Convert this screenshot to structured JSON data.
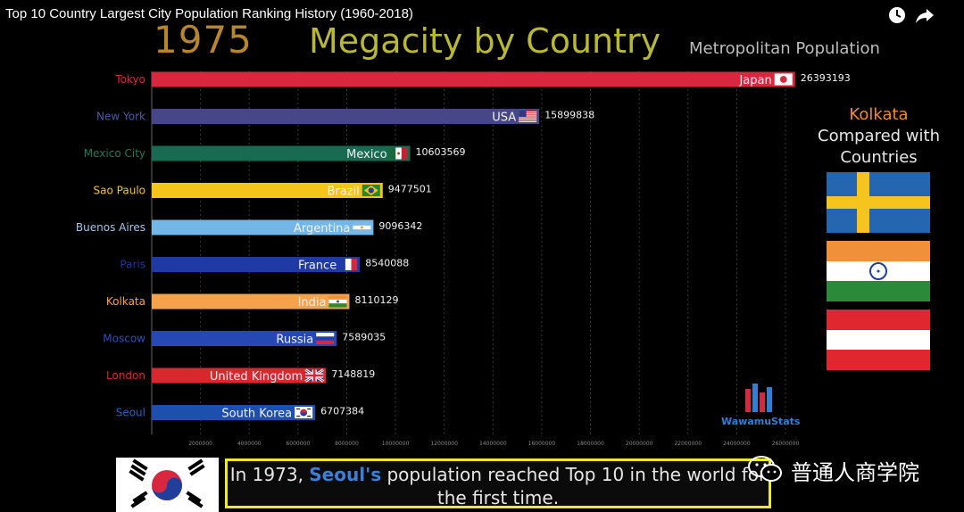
{
  "video": {
    "title": "Top 10 Country Largest City Population Ranking History (1960-2018)"
  },
  "header": {
    "year": "1975",
    "title": "Megacity by Country",
    "subtitle": "Metropolitan Population"
  },
  "comparison": {
    "city": "Kolkata",
    "text_line1": "Compared with",
    "text_line2": "Countries"
  },
  "logo": {
    "text": "WawamuStats"
  },
  "caption": {
    "part1": "In 1973, ",
    "highlight": "Seoul's",
    "part2": " population reached Top 10 in the world for the first time."
  },
  "watermark": {
    "text": "普通人商学院"
  },
  "chart_data": {
    "type": "bar",
    "orientation": "horizontal",
    "title": "Megacity by Country",
    "subtitle": "Metropolitan Population",
    "year": "1975",
    "xlim": [
      0,
      26000000
    ],
    "ticks": [
      2000000,
      4000000,
      6000000,
      8000000,
      10000000,
      12000000,
      14000000,
      16000000,
      18000000,
      20000000,
      22000000,
      24000000,
      26000000
    ],
    "bars": [
      {
        "city": "Tokyo",
        "country": "Japan",
        "value": 26393193,
        "color": "#d8283f",
        "label_color": "#d8283f",
        "flag": "japan"
      },
      {
        "city": "New York",
        "country": "USA",
        "value": 15899838,
        "color": "#48468a",
        "label_color": "#4f5aa8",
        "flag": "usa"
      },
      {
        "city": "Mexico City",
        "country": "Mexico",
        "value": 10603569,
        "color": "#186b50",
        "label_color": "#1f7a5e",
        "flag": "mexico"
      },
      {
        "city": "Sao Paulo",
        "country": "Brazil",
        "value": 9477501,
        "color": "#f4c41a",
        "label_color": "#f4c41a",
        "flag": "brazil"
      },
      {
        "city": "Buenos Aires",
        "country": "Argentina",
        "value": 9096342,
        "color": "#73b6e8",
        "label_color": "#9fc7ef",
        "flag": "argentina"
      },
      {
        "city": "Paris",
        "country": "France",
        "value": 8540088,
        "color": "#1f3aa4",
        "label_color": "#1d3aa0",
        "flag": "france"
      },
      {
        "city": "Kolkata",
        "country": "India",
        "value": 8110129,
        "color": "#f6a24a",
        "label_color": "#f6a24a",
        "flag": "india"
      },
      {
        "city": "Moscow",
        "country": "Russia",
        "value": 7589035,
        "color": "#2648b4",
        "label_color": "#2a4fc0",
        "flag": "russia"
      },
      {
        "city": "London",
        "country": "United Kingdom",
        "value": 7148819,
        "color": "#d8282e",
        "label_color": "#d8282e",
        "flag": "uk"
      },
      {
        "city": "Seoul",
        "country": "South Korea",
        "value": 6707384,
        "color": "#1d4fb0",
        "label_color": "#2a5fc8",
        "flag": "korea"
      }
    ]
  },
  "icons": {
    "clock": "clock-icon",
    "share": "share-icon",
    "wechat": "wechat-icon"
  }
}
